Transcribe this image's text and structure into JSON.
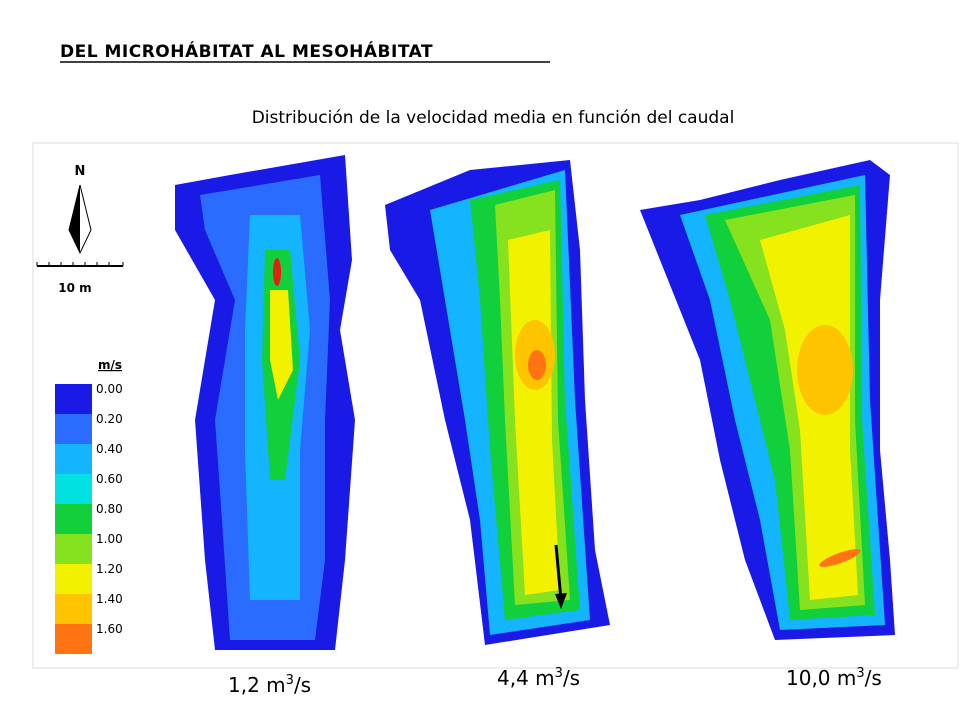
{
  "header": {
    "title": "DEL MICROHÁBITAT AL MESOHÁBITAT",
    "subtitle": "Distribución de la velocidad media en función del caudal"
  },
  "north": "N",
  "scale": "10 m",
  "legend": {
    "unit": "m/s",
    "items": [
      {
        "label": "0.00",
        "color": "#1a1ae6"
      },
      {
        "label": "0.20",
        "color": "#2a6cff"
      },
      {
        "label": "0.40",
        "color": "#14b4ff"
      },
      {
        "label": "0.60",
        "color": "#00e2e2"
      },
      {
        "label": "0.80",
        "color": "#12cf3c"
      },
      {
        "label": "1.00",
        "color": "#86e21e"
      },
      {
        "label": "1.20",
        "color": "#f2f200"
      },
      {
        "label": "1.40",
        "color": "#ffc400"
      },
      {
        "label": "1.60",
        "color": "#ff7412"
      }
    ]
  },
  "panels": [
    {
      "pre": "1,2 m",
      "sup": "3",
      "post": "/s"
    },
    {
      "pre": "4,4 m",
      "sup": "3",
      "post": "/s"
    },
    {
      "pre": "10,0 m",
      "sup": "3",
      "post": "/s"
    }
  ]
}
